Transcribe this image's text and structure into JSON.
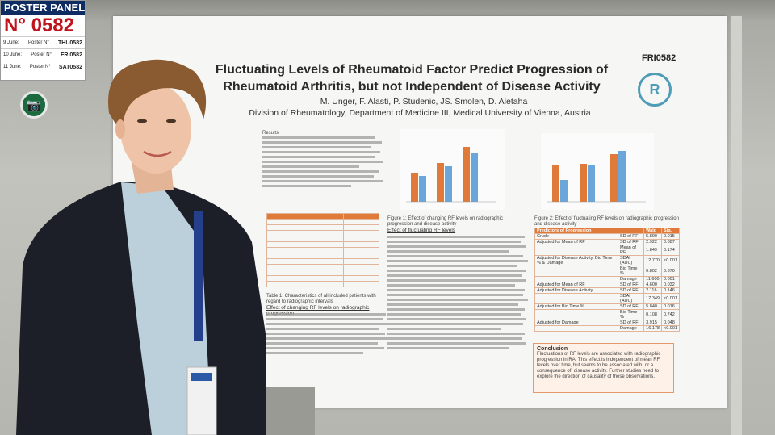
{
  "panel": {
    "header": "POSTER PANEL",
    "number": "N° 0582",
    "rows": [
      {
        "day": "9 June:",
        "label": "Poster N°",
        "code": "THU0582"
      },
      {
        "day": "10 June:",
        "label": "Poster N°",
        "code": "FRI0582"
      },
      {
        "day": "11 June:",
        "label": "Poster N°",
        "code": "SAT0582"
      }
    ]
  },
  "poster": {
    "code": "FRI0582",
    "title_line1": "Fluctuating Levels of Rheumatoid Factor Predict Progression of",
    "title_line2": "Rheumatoid Arthritis, but not Independent of Disease Activity",
    "authors": "M. Unger, F. Alasti, P. Studenic, JS. Smolen, D. Aletaha",
    "affiliation": "Division of Rheumatology, Department of Medicine III, Medical University of Vienna, Austria",
    "results_heading": "Results",
    "table1_caption": "Table 1: Characteristics of all included patients with regard to radiographic intervals",
    "section_change": "Effect of changing RF levels on radiographic progression",
    "figure1_caption": "Figure 1: Effect of changing RF levels on radiographic progression and disease activity",
    "section_fluct": "Effect of fluctuating RF levels",
    "figure2_caption": "Figure 2: Effect of fluctuating RF levels on radiographic progression and disease activity",
    "table2_headers": [
      "Predictors of Progression",
      "Wald",
      "Sig."
    ],
    "table2_rows": [
      [
        "Crude",
        "SD of RF",
        "5.890",
        "0.015"
      ],
      [
        "Adjusted for Mean of RF",
        "SD of RF",
        "2.922",
        "0.087"
      ],
      [
        "",
        "Mean of RF",
        "1.849",
        "0.174"
      ],
      [
        "Adjusted for Disease Activity, Bio Time % & Damage",
        "SDAI (AUC)",
        "12.770",
        "<0.001"
      ],
      [
        "",
        "Bio Time %",
        "0.802",
        "0.370"
      ],
      [
        "",
        "Damage",
        "11.600",
        "0.001"
      ],
      [
        "Adjusted for Mean of RF",
        "SD of RF",
        "4.600",
        "0.032"
      ],
      [
        "Adjusted for Disease Activity",
        "SD of RF",
        "2.116",
        "0.146"
      ],
      [
        "",
        "SDAI (AUC)",
        "17.349",
        "<0.001"
      ],
      [
        "Adjusted for Bio Time %",
        "SD of RF",
        "5.840",
        "0.016"
      ],
      [
        "",
        "Bio Time %",
        "0.108",
        "0.742"
      ],
      [
        "Adjusted for Damage",
        "SD of RF",
        "3.915",
        "0.048"
      ],
      [
        "",
        "Damage",
        "16.178",
        "<0.001"
      ]
    ],
    "conclusion_heading": "Conclusion",
    "conclusion_text": "Fluctuations of RF levels are associated with radiographic progression in RA. This effect is independent of mean RF levels over time, but seems to be associated with, or a consequence of, disease activity. Further studies need to explore the direction of causality of these observations."
  },
  "colors": {
    "panel_header": "#0f2c62",
    "panel_number": "#c0141c",
    "accent_orange": "#e07a3a",
    "accent_blue": "#6aa6d9",
    "logo": "#4f9cb8"
  },
  "icons": [
    "camera-icon",
    "rheumatology-logo-icon"
  ]
}
